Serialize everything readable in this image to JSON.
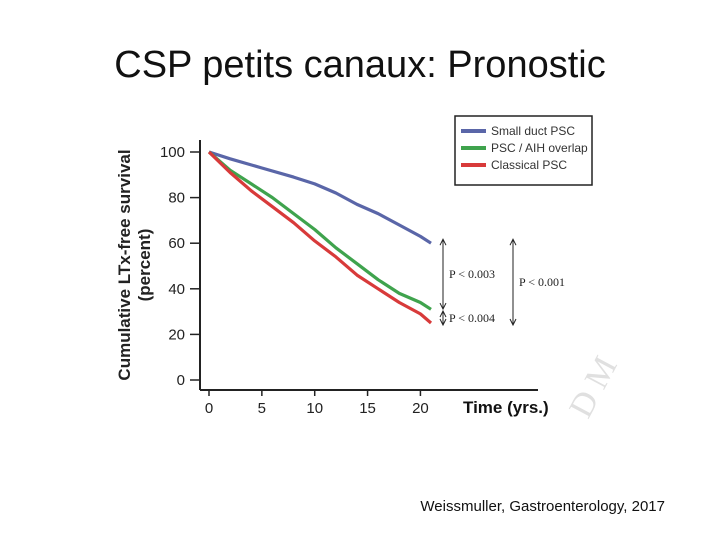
{
  "slide": {
    "title": "CSP petits canaux: Pronostic",
    "citation": "Weissmuller, Gastroenterology, 2017",
    "watermark": "D M"
  },
  "chart_data": {
    "type": "line",
    "ylabel_line1": "Cumulative LTx-free survival",
    "ylabel_line2": "(percent)",
    "xlabel": "Time (yrs.)",
    "xlim": [
      0,
      22
    ],
    "ylim": [
      0,
      100
    ],
    "xticks": [
      0,
      5,
      10,
      15,
      20
    ],
    "yticks": [
      0,
      20,
      40,
      60,
      80,
      100
    ],
    "legend_position": "top-right",
    "series": [
      {
        "name": "Small duct PSC",
        "color": "#5a66a8",
        "x": [
          0,
          2,
          5,
          8,
          10,
          12,
          14,
          16,
          18,
          20,
          21
        ],
        "y": [
          100,
          97,
          93,
          89,
          86,
          82,
          77,
          73,
          68,
          63,
          60
        ]
      },
      {
        "name": "PSC / AIH overlap",
        "color": "#3fa34d",
        "x": [
          0,
          2,
          4,
          6,
          8,
          10,
          12,
          14,
          16,
          18,
          20,
          21
        ],
        "y": [
          100,
          92,
          86,
          80,
          73,
          66,
          58,
          51,
          44,
          38,
          34,
          31
        ]
      },
      {
        "name": "Classical PSC",
        "color": "#d83a3a",
        "x": [
          0,
          2,
          4,
          6,
          8,
          10,
          12,
          14,
          16,
          18,
          20,
          21
        ],
        "y": [
          100,
          91,
          83,
          76,
          69,
          61,
          54,
          46,
          40,
          34,
          29,
          25
        ]
      }
    ],
    "annotations": [
      {
        "label": "P < 0.003",
        "from": 60,
        "to": 32
      },
      {
        "label": "P < 0.004",
        "from": 32,
        "to": 25
      },
      {
        "label": "P < 0.001",
        "from": 60,
        "to": 25
      }
    ]
  }
}
